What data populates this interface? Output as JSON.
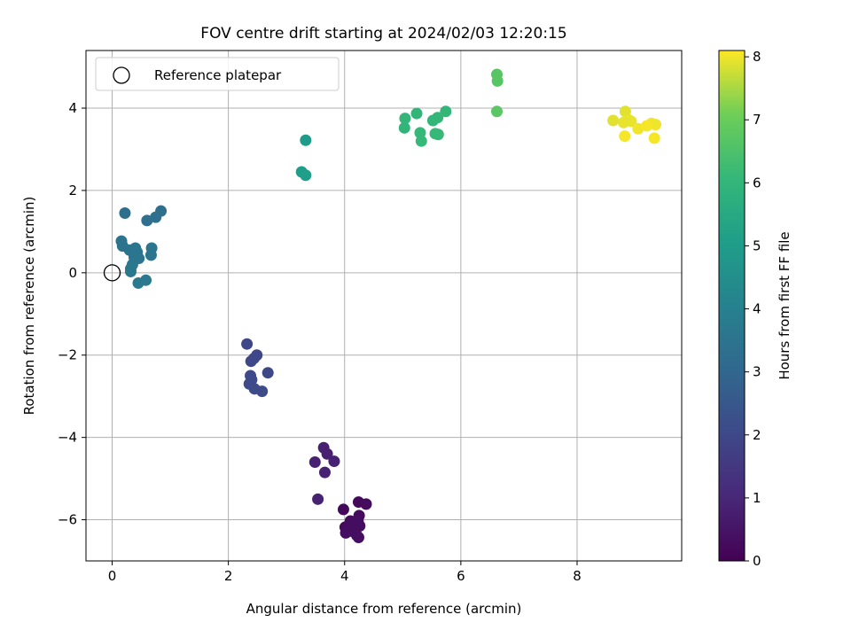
{
  "chart_data": {
    "type": "scatter",
    "title": "FOV centre drift starting at 2024/02/03 12:20:15",
    "xlabel": "Angular distance from reference (arcmin)",
    "ylabel": "Rotation from reference (arcmin)",
    "xlim": [
      -0.45,
      9.8
    ],
    "ylim": [
      -7.0,
      5.4
    ],
    "xticks": [
      0,
      2,
      4,
      6,
      8
    ],
    "yticks": [
      -6,
      -4,
      -2,
      0,
      2,
      4
    ],
    "xtick_labels": [
      "0",
      "2",
      "4",
      "6",
      "8"
    ],
    "ytick_labels": [
      "−6",
      "−4",
      "−2",
      "0",
      "2",
      "4"
    ],
    "grid": true,
    "legend": {
      "position": "top-left",
      "entries": [
        "Reference platepar"
      ]
    },
    "reference_point": {
      "x": 0,
      "y": 0
    },
    "colorbar": {
      "label": "Hours from first FF file",
      "range": [
        0,
        8.1
      ],
      "ticks": [
        0,
        1,
        2,
        3,
        4,
        5,
        6,
        7,
        8
      ],
      "tick_labels": [
        "0",
        "1",
        "2",
        "3",
        "4",
        "5",
        "6",
        "7",
        "8"
      ],
      "colormap": "viridis"
    },
    "points": [
      {
        "x": 3.98,
        "y": -5.75,
        "h": 0.2
      },
      {
        "x": 4.24,
        "y": -5.57,
        "h": 0.2
      },
      {
        "x": 4.37,
        "y": -5.62,
        "h": 0.25
      },
      {
        "x": 4.01,
        "y": -6.18,
        "h": 0.2
      },
      {
        "x": 4.1,
        "y": -6.03,
        "h": 0.25
      },
      {
        "x": 4.25,
        "y": -5.9,
        "h": 0.25
      },
      {
        "x": 4.23,
        "y": -6.02,
        "h": 0.3
      },
      {
        "x": 4.26,
        "y": -6.15,
        "h": 0.3
      },
      {
        "x": 4.18,
        "y": -6.25,
        "h": 0.3
      },
      {
        "x": 4.13,
        "y": -6.28,
        "h": 0.3
      },
      {
        "x": 4.02,
        "y": -6.32,
        "h": 0.35
      },
      {
        "x": 4.21,
        "y": -6.38,
        "h": 0.35
      },
      {
        "x": 4.24,
        "y": -6.43,
        "h": 0.35
      },
      {
        "x": 4.08,
        "y": -6.12,
        "h": 0.3
      },
      {
        "x": 3.64,
        "y": -4.25,
        "h": 0.8
      },
      {
        "x": 3.7,
        "y": -4.4,
        "h": 0.8
      },
      {
        "x": 3.49,
        "y": -4.6,
        "h": 0.85
      },
      {
        "x": 3.82,
        "y": -4.58,
        "h": 0.85
      },
      {
        "x": 3.66,
        "y": -4.85,
        "h": 0.85
      },
      {
        "x": 3.54,
        "y": -5.5,
        "h": 0.85
      },
      {
        "x": 2.32,
        "y": -1.73,
        "h": 1.95
      },
      {
        "x": 2.49,
        "y": -2.0,
        "h": 1.95
      },
      {
        "x": 2.44,
        "y": -2.08,
        "h": 2.0
      },
      {
        "x": 2.39,
        "y": -2.15,
        "h": 2.0
      },
      {
        "x": 2.68,
        "y": -2.43,
        "h": 2.0
      },
      {
        "x": 2.38,
        "y": -2.5,
        "h": 2.05
      },
      {
        "x": 2.4,
        "y": -2.6,
        "h": 2.05
      },
      {
        "x": 2.36,
        "y": -2.7,
        "h": 2.05
      },
      {
        "x": 2.45,
        "y": -2.82,
        "h": 2.1
      },
      {
        "x": 2.58,
        "y": -2.88,
        "h": 2.1
      },
      {
        "x": 0.22,
        "y": 1.45,
        "h": 3.3
      },
      {
        "x": 0.84,
        "y": 1.5,
        "h": 3.3
      },
      {
        "x": 0.75,
        "y": 1.35,
        "h": 3.35
      },
      {
        "x": 0.6,
        "y": 1.27,
        "h": 3.35
      },
      {
        "x": 0.16,
        "y": 0.77,
        "h": 3.5
      },
      {
        "x": 0.18,
        "y": 0.65,
        "h": 3.5
      },
      {
        "x": 0.3,
        "y": 0.55,
        "h": 3.5
      },
      {
        "x": 0.4,
        "y": 0.6,
        "h": 3.55
      },
      {
        "x": 0.68,
        "y": 0.6,
        "h": 3.55
      },
      {
        "x": 0.43,
        "y": 0.5,
        "h": 3.55
      },
      {
        "x": 0.67,
        "y": 0.43,
        "h": 3.6
      },
      {
        "x": 0.38,
        "y": 0.38,
        "h": 3.6
      },
      {
        "x": 0.46,
        "y": 0.35,
        "h": 3.6
      },
      {
        "x": 0.35,
        "y": 0.2,
        "h": 3.65
      },
      {
        "x": 0.32,
        "y": 0.1,
        "h": 3.65
      },
      {
        "x": 0.32,
        "y": 0.03,
        "h": 3.65
      },
      {
        "x": 0.58,
        "y": -0.18,
        "h": 3.7
      },
      {
        "x": 0.45,
        "y": -0.25,
        "h": 3.7
      },
      {
        "x": 3.33,
        "y": 3.22,
        "h": 5.0
      },
      {
        "x": 3.26,
        "y": 2.45,
        "h": 5.05
      },
      {
        "x": 3.33,
        "y": 2.37,
        "h": 5.05
      },
      {
        "x": 5.04,
        "y": 3.75,
        "h": 6.0
      },
      {
        "x": 5.24,
        "y": 3.87,
        "h": 6.0
      },
      {
        "x": 5.03,
        "y": 3.52,
        "h": 6.0
      },
      {
        "x": 5.74,
        "y": 3.92,
        "h": 6.05
      },
      {
        "x": 5.6,
        "y": 3.77,
        "h": 6.05
      },
      {
        "x": 5.52,
        "y": 3.7,
        "h": 6.05
      },
      {
        "x": 5.3,
        "y": 3.4,
        "h": 6.1
      },
      {
        "x": 5.56,
        "y": 3.38,
        "h": 6.1
      },
      {
        "x": 5.61,
        "y": 3.36,
        "h": 6.1
      },
      {
        "x": 5.32,
        "y": 3.2,
        "h": 6.1
      },
      {
        "x": 6.62,
        "y": 4.82,
        "h": 6.7
      },
      {
        "x": 6.63,
        "y": 4.66,
        "h": 6.7
      },
      {
        "x": 6.62,
        "y": 3.92,
        "h": 6.75
      },
      {
        "x": 8.62,
        "y": 3.7,
        "h": 7.9
      },
      {
        "x": 8.83,
        "y": 3.92,
        "h": 7.9
      },
      {
        "x": 8.8,
        "y": 3.65,
        "h": 7.95
      },
      {
        "x": 8.88,
        "y": 3.72,
        "h": 7.95
      },
      {
        "x": 8.93,
        "y": 3.68,
        "h": 7.95
      },
      {
        "x": 9.05,
        "y": 3.5,
        "h": 8.0
      },
      {
        "x": 9.28,
        "y": 3.63,
        "h": 8.0
      },
      {
        "x": 9.35,
        "y": 3.6,
        "h": 8.0
      },
      {
        "x": 8.82,
        "y": 3.32,
        "h": 8.05
      },
      {
        "x": 9.33,
        "y": 3.27,
        "h": 8.05
      },
      {
        "x": 9.2,
        "y": 3.57,
        "h": 8.05
      }
    ]
  }
}
